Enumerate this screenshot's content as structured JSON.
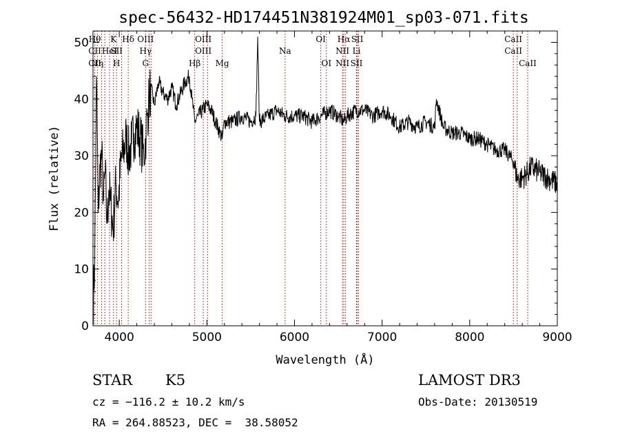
{
  "chart_data": {
    "type": "line",
    "title": "spec-56432-HD174451N381924M01_sp03-071.fits",
    "xlabel": "Wavelength (Å)",
    "ylabel": "Flux (relative)",
    "xlim": [
      3700,
      9000
    ],
    "ylim": [
      0,
      52
    ],
    "xticks": [
      4000,
      5000,
      6000,
      7000,
      8000,
      9000
    ],
    "yticks": [
      0,
      10,
      20,
      30,
      40,
      50
    ],
    "series": [
      {
        "name": "flux",
        "x": [
          3700,
          3720,
          3740,
          3760,
          3780,
          3800,
          3820,
          3840,
          3860,
          3880,
          3900,
          3930,
          3960,
          3990,
          4020,
          4050,
          4080,
          4110,
          4140,
          4170,
          4200,
          4240,
          4280,
          4300,
          4320,
          4340,
          4360,
          4400,
          4450,
          4500,
          4550,
          4600,
          4650,
          4700,
          4750,
          4800,
          4830,
          4861,
          4900,
          4950,
          5000,
          5050,
          5100,
          5150,
          5175,
          5200,
          5300,
          5400,
          5500,
          5560,
          5580,
          5600,
          5700,
          5800,
          5890,
          6000,
          6100,
          6200,
          6300,
          6400,
          6500,
          6563,
          6600,
          6700,
          6800,
          6900,
          7000,
          7100,
          7200,
          7300,
          7400,
          7500,
          7600,
          7620,
          7700,
          7800,
          7900,
          8000,
          8100,
          8200,
          8300,
          8400,
          8500,
          8542,
          8600,
          8662,
          8700,
          8800,
          8900,
          9000
        ],
        "values": [
          3,
          12,
          44,
          20,
          28,
          30,
          22,
          27,
          18,
          24,
          22,
          17,
          25,
          22,
          29,
          31,
          33,
          30,
          32,
          34,
          35,
          33,
          30,
          33,
          37,
          40,
          42,
          39,
          43,
          41,
          40,
          42,
          39,
          41,
          43,
          44,
          40,
          36,
          37,
          38,
          39,
          38,
          36,
          34,
          33,
          36,
          36,
          37,
          36,
          37,
          51,
          36,
          37,
          38,
          37,
          37,
          37,
          36,
          37,
          38,
          37,
          36,
          37,
          38,
          38,
          37,
          38,
          37,
          35,
          36,
          35,
          36,
          35,
          40,
          35,
          34,
          34,
          33,
          33,
          32,
          31,
          31,
          29,
          26,
          26,
          27,
          28,
          27,
          26,
          25
        ]
      }
    ],
    "lines": [
      {
        "x": 3720,
        "t1": "Hθ",
        "t2": "CII",
        "t3": "CII"
      },
      {
        "x": 3750,
        "t1": "",
        "t2": "",
        "t3": "Hη"
      },
      {
        "x": 3799,
        "t1": "",
        "t2": "",
        "t3": ""
      },
      {
        "x": 3835,
        "t1": "",
        "t2": "",
        "t3": ""
      },
      {
        "x": 3889,
        "t1": "",
        "t2": "HeI",
        "t3": ""
      },
      {
        "x": 3934,
        "t1": "K",
        "t2": "",
        "t3": ""
      },
      {
        "x": 3969,
        "t1": "",
        "t2": "SII",
        "t3": "H"
      },
      {
        "x": 4026,
        "t1": "",
        "t2": "",
        "t3": ""
      },
      {
        "x": 4102,
        "t1": "Hδ",
        "t2": "",
        "t3": ""
      },
      {
        "x": 4300,
        "t1": "OIII",
        "t2": "Hγ",
        "t3": "G"
      },
      {
        "x": 4340,
        "t1": "",
        "t2": "",
        "t3": ""
      },
      {
        "x": 4363,
        "t1": "",
        "t2": "",
        "t3": ""
      },
      {
        "x": 4861,
        "t1": "",
        "t2": "",
        "t3": "Hβ"
      },
      {
        "x": 4959,
        "t1": "OIII",
        "t2": "OIII",
        "t3": ""
      },
      {
        "x": 5007,
        "t1": "",
        "t2": "",
        "t3": ""
      },
      {
        "x": 5175,
        "t1": "",
        "t2": "",
        "t3": "Mg"
      },
      {
        "x": 5893,
        "t1": "",
        "t2": "Na",
        "t3": ""
      },
      {
        "x": 6300,
        "t1": "OI",
        "t2": "",
        "t3": ""
      },
      {
        "x": 6364,
        "t1": "",
        "t2": "",
        "t3": "OI"
      },
      {
        "x": 6548,
        "t1": "",
        "t2": "NII",
        "t3": "NII"
      },
      {
        "x": 6563,
        "t1": "Hα",
        "t2": "",
        "t3": ""
      },
      {
        "x": 6583,
        "t1": "",
        "t2": "",
        "t3": ""
      },
      {
        "x": 6708,
        "t1": "",
        "t2": "Li",
        "t3": "SII"
      },
      {
        "x": 6716,
        "t1": "SII",
        "t2": "",
        "t3": ""
      },
      {
        "x": 6731,
        "t1": "",
        "t2": "",
        "t3": ""
      },
      {
        "x": 8498,
        "t1": "CaII",
        "t2": "CaII",
        "t3": ""
      },
      {
        "x": 8542,
        "t1": "",
        "t2": "",
        "t3": ""
      },
      {
        "x": 8662,
        "t1": "",
        "t2": "",
        "t3": "CaII"
      }
    ]
  },
  "info": {
    "class": "STAR",
    "subclass": "K5",
    "survey": "LAMOST DR3",
    "cz": "cz = −116.2 ± 10.2 km/s",
    "obs_date": "Obs-Date: 20130519",
    "radec": "RA = 264.88523, DEC =  38.58052"
  },
  "colors": {
    "line": "#000000",
    "marker": "#b00000"
  }
}
